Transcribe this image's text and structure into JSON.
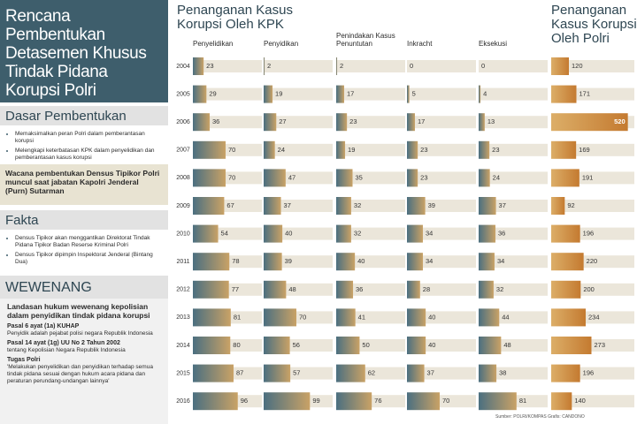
{
  "sidebar": {
    "title": [
      "Rencana Pembentukan",
      "Detasemen Khusus",
      "Tindak Pidana",
      "Korupsi Polri"
    ],
    "dasar": {
      "heading": "Dasar Pembentukan",
      "items": [
        "Memaksimalkan peran Polri dalam pemberantasan korupsi",
        "Melengkapi keterbatasan KPK dalam penyelidikan dan pemberantasan kasus korupsi"
      ]
    },
    "wacana": "Wacana pembentukan Densus Tipikor Polri muncul saat jabatan Kapolri Jenderal (Purn) Sutarman",
    "fakta": {
      "heading": "Fakta",
      "items": [
        "Densus Tipikor akan menggantikan Direktorat Tindak Pidana Tipikor Badan Reserse Kriminal Polri",
        "Densus Tipikor dipimpin Inspektorat Jenderal (Bintang Dua)"
      ]
    },
    "wewenang": {
      "heading": "WEWENANG",
      "lead": "Landasan hukum wewenang kepolisian dalam penyidikan tindak pidana korupsi",
      "items": [
        {
          "title": "Pasal 6 ayat (1a) KUHAP",
          "text": "Penyidik adalah pejabat polisi negara Republik Indonesia"
        },
        {
          "title": "Pasal 14 ayat (1g) UU No 2 Tahun 2002",
          "text": "tentang Kepolisian Negara Republik Indonesia"
        },
        {
          "title": "Tugas Polri",
          "text": "'Melakukan penyelidikan dan penyidikan terhadap semua tindak pidana sesuai dengan hukum acara pidana dan peraturan perundang-undangan lainnya'"
        }
      ]
    }
  },
  "source": "Sumber: POLRI/KOMPAS Grafis: CANDONO",
  "chart_data": [
    {
      "type": "bar",
      "title": "Penanganan Kasus Korupsi Oleh KPK",
      "categories": [
        "2004",
        "2005",
        "2006",
        "2007",
        "2008",
        "2009",
        "2010",
        "2011",
        "2012",
        "2013",
        "2014",
        "2015",
        "2016"
      ],
      "colors": [
        "#4b6f80",
        "#c9a266"
      ],
      "xlim": [
        0,
        140
      ],
      "series": [
        {
          "name": "Penyelidikan",
          "values": [
            23,
            29,
            36,
            70,
            70,
            67,
            54,
            78,
            77,
            81,
            80,
            87,
            96
          ]
        },
        {
          "name": "Penyidikan",
          "values": [
            2,
            19,
            27,
            24,
            47,
            37,
            40,
            39,
            48,
            70,
            56,
            57,
            99
          ]
        },
        {
          "name": "Penindakan Kasus Penuntutan",
          "values": [
            2,
            17,
            23,
            19,
            35,
            32,
            32,
            40,
            36,
            41,
            50,
            62,
            76
          ]
        },
        {
          "name": "Inkracht",
          "values": [
            0,
            5,
            17,
            23,
            23,
            39,
            34,
            34,
            28,
            40,
            40,
            37,
            70
          ]
        },
        {
          "name": "Eksekusi",
          "values": [
            0,
            4,
            13,
            23,
            24,
            37,
            36,
            34,
            32,
            44,
            48,
            38,
            81
          ]
        }
      ]
    },
    {
      "type": "bar",
      "title": "Penanganan Kasus Korupsi Oleh Polri",
      "colors": [
        "#dcae68",
        "#c47a30"
      ],
      "xlim": [
        0,
        540
      ],
      "values": [
        120,
        171,
        520,
        169,
        191,
        92,
        196,
        220,
        200,
        234,
        273,
        196,
        140
      ]
    }
  ]
}
